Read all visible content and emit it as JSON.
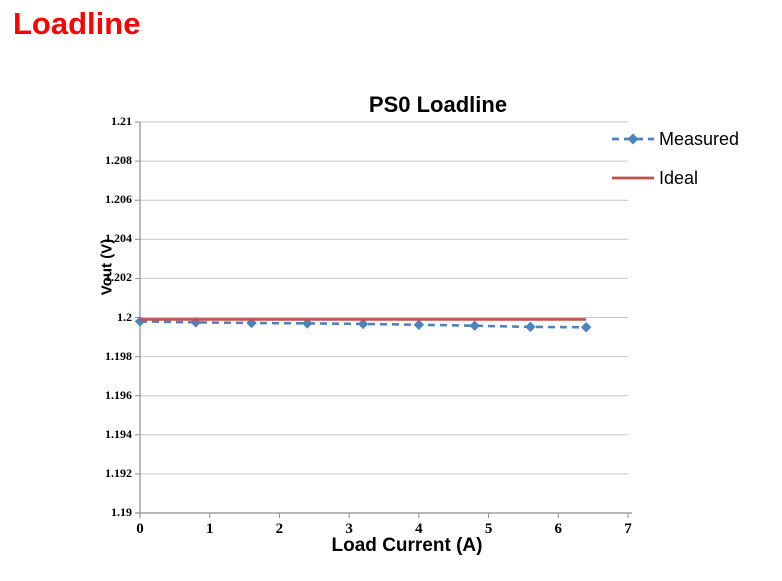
{
  "page": {
    "heading": "Loadline",
    "heading_color": "#FF0000"
  },
  "chart_data": {
    "type": "line",
    "title": "PS0 Loadline",
    "xlabel": "Load Current (A)",
    "ylabel": "Vout (V)",
    "xlim": [
      0,
      7
    ],
    "ylim": [
      1.19,
      1.21
    ],
    "x_ticks": [
      0,
      1,
      2,
      3,
      4,
      5,
      6,
      7
    ],
    "x_tick_labels": [
      "0",
      "1",
      "2",
      "3",
      "4",
      "5",
      "6",
      "7"
    ],
    "y_ticks": [
      1.21,
      1.208,
      1.206,
      1.204,
      1.202,
      1.2,
      1.198,
      1.196,
      1.194,
      1.192,
      1.19
    ],
    "y_tick_labels": [
      "1.21",
      "1.208",
      "1.206",
      "1.204",
      "1.202",
      "1.2",
      "1.198",
      "1.196",
      "1.194",
      "1.192",
      "1.19"
    ],
    "grid": "horizontal",
    "legend_position": "right",
    "colors": {
      "gridline": "#C6C6C6",
      "axis": "#8E8E8E"
    },
    "series": [
      {
        "name": "Measured",
        "color": "#4F81BD",
        "style": "dashed",
        "marker": "diamond",
        "x": [
          0,
          0.8,
          1.6,
          2.4,
          3.2,
          4.0,
          4.8,
          5.6,
          6.4
        ],
        "y": [
          1.1998,
          1.19975,
          1.19972,
          1.1997,
          1.19967,
          1.19963,
          1.19958,
          1.19952,
          1.1995
        ]
      },
      {
        "name": "Ideal",
        "color": "#C0504D",
        "style": "solid",
        "marker": "none",
        "x": [
          0,
          6.4
        ],
        "y": [
          1.1999,
          1.1999
        ]
      }
    ]
  }
}
